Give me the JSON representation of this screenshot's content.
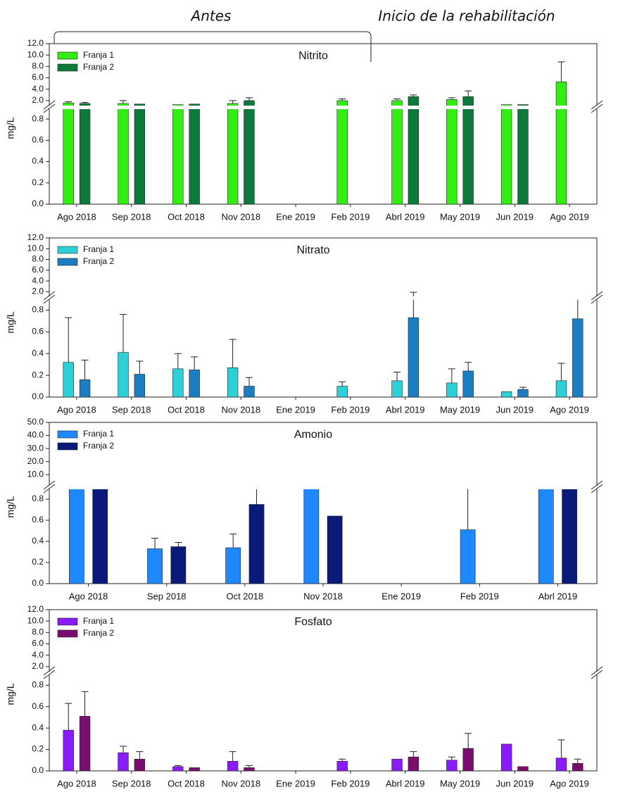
{
  "annotations": {
    "before": "Antes",
    "after": "Inicio de la rehabilitación"
  },
  "chart_data": [
    {
      "type": "bar",
      "title": "Nitrito",
      "ylabel": "mg/L",
      "broken_axis": true,
      "categories": [
        "Ago 2018",
        "Sep 2018",
        "Oct 2018",
        "Nov 2018",
        "Ene 2019",
        "Feb 2019",
        "Abrl 2019",
        "May 2019",
        "Jun 2019",
        "Ago 2019"
      ],
      "series": [
        {
          "name": "Franja 1",
          "color": "#33ee11",
          "values": [
            1.6,
            1.5,
            1.3,
            1.5,
            null,
            2.0,
            2.0,
            2.2,
            1.3,
            5.3
          ],
          "errors": [
            0.2,
            0.5,
            null,
            0.5,
            null,
            0.3,
            0.3,
            0.3,
            null,
            3.5
          ]
        },
        {
          "name": "Franja 2",
          "color": "#0b7a3a",
          "values": [
            1.5,
            1.4,
            1.4,
            2.0,
            null,
            null,
            2.7,
            2.7,
            1.3,
            null
          ],
          "errors": [
            0.2,
            null,
            null,
            0.5,
            null,
            null,
            0.3,
            1.0,
            null,
            null
          ]
        }
      ],
      "ylim": [
        0,
        0.9
      ],
      "yticks": [
        {
          "value": 0,
          "label": "0.0"
        },
        {
          "value": 0.2,
          "label": "0.2"
        },
        {
          "value": 0.4,
          "label": "0.4"
        },
        {
          "value": 0.6,
          "label": "0.6"
        },
        {
          "value": 0.8,
          "label": "0.8"
        }
      ],
      "ylim_break": [
        1,
        12
      ],
      "yticks_break": [
        {
          "value": 2,
          "label": "2.0"
        },
        {
          "value": 4,
          "label": "4.0"
        },
        {
          "value": 6,
          "label": "6.0"
        },
        {
          "value": 8,
          "label": "8.0"
        },
        {
          "value": 10,
          "label": "10.0"
        },
        {
          "value": 12,
          "label": "12.0"
        }
      ]
    },
    {
      "type": "bar",
      "title": "Nitrato",
      "ylabel": "mg/L",
      "broken_axis": true,
      "categories": [
        "Ago 2018",
        "Sep 2018",
        "Oct 2018",
        "Nov 2018",
        "Ene 2019",
        "Feb 2019",
        "Abrl 2019",
        "May 2019",
        "Jun 2019",
        "Ago 2019"
      ],
      "series": [
        {
          "name": "Franja 1",
          "color": "#2ed0d8",
          "values": [
            0.32,
            0.41,
            0.26,
            0.27,
            null,
            0.1,
            0.15,
            0.13,
            0.05,
            0.15
          ],
          "errors": [
            0.41,
            0.35,
            0.14,
            0.26,
            null,
            0.04,
            0.08,
            0.13,
            null,
            0.16
          ]
        },
        {
          "name": "Franja 2",
          "color": "#1a7ec0",
          "values": [
            0.16,
            0.21,
            0.25,
            0.1,
            null,
            null,
            0.73,
            0.24,
            0.07,
            0.72
          ],
          "errors": [
            0.18,
            0.12,
            0.12,
            0.08,
            null,
            null,
            1.17,
            0.08,
            0.02,
            0.2
          ]
        }
      ],
      "ylim": [
        0,
        0.9
      ],
      "yticks": [
        {
          "value": 0,
          "label": "0.0"
        },
        {
          "value": 0.2,
          "label": "0.2"
        },
        {
          "value": 0.4,
          "label": "0.4"
        },
        {
          "value": 0.6,
          "label": "0.6"
        },
        {
          "value": 0.8,
          "label": "0.8"
        }
      ],
      "ylim_break": [
        1,
        12
      ],
      "yticks_break": [
        {
          "value": 2,
          "label": "2.0"
        },
        {
          "value": 4,
          "label": "4.0"
        },
        {
          "value": 6,
          "label": "6.0"
        },
        {
          "value": 8,
          "label": "8.0"
        },
        {
          "value": 10,
          "label": "10.0"
        },
        {
          "value": 12,
          "label": "12.0"
        }
      ]
    },
    {
      "type": "bar",
      "title": "Amonio",
      "ylabel": "mg/L",
      "broken_axis": true,
      "categories": [
        "Ago 2018",
        "Sep 2018",
        "Oct 2018",
        "Nov 2018",
        "Ene 2019",
        "Feb 2019",
        "Abrl 2019"
      ],
      "series": [
        {
          "name": "Franja 1",
          "color": "#1e88ff",
          "values": [
            0.95,
            0.33,
            0.34,
            0.92,
            null,
            0.51,
            0.92
          ],
          "errors": [
            null,
            0.1,
            0.13,
            null,
            null,
            0.41,
            null
          ]
        },
        {
          "name": "Franja 2",
          "color": "#0a1a7a",
          "values": [
            0.93,
            0.35,
            0.75,
            0.64,
            null,
            null,
            0.92
          ],
          "errors": [
            null,
            0.04,
            0.17,
            null,
            null,
            null,
            null
          ]
        }
      ],
      "ylim": [
        0,
        0.9
      ],
      "yticks": [
        {
          "value": 0,
          "label": "0.0"
        },
        {
          "value": 0.2,
          "label": "0.2"
        },
        {
          "value": 0.4,
          "label": "0.4"
        },
        {
          "value": 0.6,
          "label": "0.6"
        },
        {
          "value": 0.8,
          "label": "0.8"
        }
      ],
      "ylim_break": [
        1,
        50
      ],
      "yticks_break": [
        {
          "value": 10,
          "label": "10.0"
        },
        {
          "value": 20,
          "label": "20.0"
        },
        {
          "value": 30,
          "label": "30.0"
        },
        {
          "value": 40,
          "label": "40.0"
        },
        {
          "value": 50,
          "label": "50.0"
        }
      ]
    },
    {
      "type": "bar",
      "title": "Fosfato",
      "ylabel": "mg/L",
      "broken_axis": true,
      "categories": [
        "Ago 2018",
        "Sep 2018",
        "Oct 2018",
        "Nov 2018",
        "Ene 2019",
        "Feb 2019",
        "Abrl 2019",
        "May 2019",
        "Jun 2019",
        "Ago 2019"
      ],
      "series": [
        {
          "name": "Franja 1",
          "color": "#8a1aff",
          "values": [
            0.38,
            0.17,
            0.04,
            0.09,
            null,
            0.09,
            0.11,
            0.1,
            0.25,
            0.12
          ],
          "errors": [
            0.25,
            0.06,
            0.01,
            0.09,
            null,
            0.02,
            null,
            0.03,
            null,
            0.17
          ]
        },
        {
          "name": "Franja 2",
          "color": "#7a0e6e",
          "values": [
            0.51,
            0.11,
            0.03,
            0.03,
            null,
            null,
            0.13,
            0.21,
            0.04,
            0.07
          ],
          "errors": [
            0.23,
            0.07,
            null,
            0.02,
            null,
            null,
            0.05,
            0.14,
            null,
            0.04
          ]
        }
      ],
      "ylim": [
        0,
        0.9
      ],
      "yticks": [
        {
          "value": 0,
          "label": "0.0"
        },
        {
          "value": 0.2,
          "label": "0.2"
        },
        {
          "value": 0.4,
          "label": "0.4"
        },
        {
          "value": 0.6,
          "label": "0.6"
        },
        {
          "value": 0.8,
          "label": "0.8"
        }
      ],
      "ylim_break": [
        1,
        12
      ],
      "yticks_break": [
        {
          "value": 2,
          "label": "2.0"
        },
        {
          "value": 4,
          "label": "4.0"
        },
        {
          "value": 6,
          "label": "6.0"
        },
        {
          "value": 8,
          "label": "8.0"
        },
        {
          "value": 10,
          "label": "10.0"
        },
        {
          "value": 12,
          "label": "12.0"
        }
      ]
    }
  ]
}
